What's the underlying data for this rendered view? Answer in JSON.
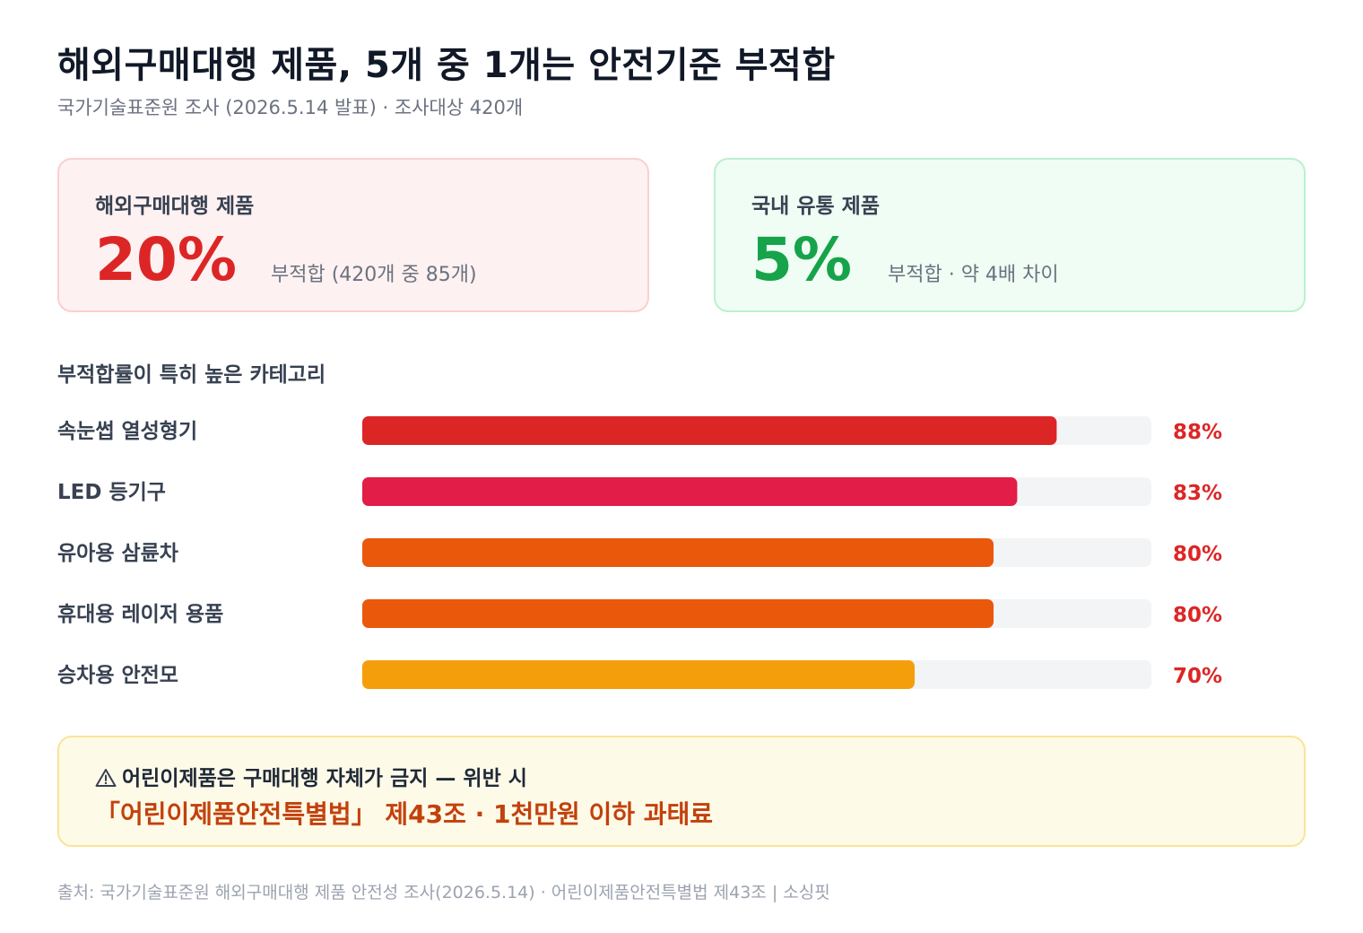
{
  "title": "해외구매대행 제품, 5개 중 1개는 안전기준 부적합",
  "subtitle": "국가기술표준원 조사 (2026.5.14 발표) · 조사대상 420개",
  "cards": [
    {
      "label": "해외구매대행 제품",
      "value": "20%",
      "note": "부적합 (420개 중 85개)",
      "color": "#dc2626"
    },
    {
      "label": "국내 유통 제품",
      "value": "5%",
      "note": "부적합 · 약 4배 차이",
      "color": "#16a34a"
    }
  ],
  "section_title": "부적합률이 특히 높은 카테고리",
  "chart_data": {
    "type": "bar",
    "orientation": "horizontal",
    "categories": [
      "속눈썹 열성형기",
      "LED 등기구",
      "유아용 삼륜차",
      "휴대용 레이저 용품",
      "승차용 안전모"
    ],
    "values": [
      88,
      83,
      80,
      80,
      70
    ],
    "value_labels": [
      "88%",
      "83%",
      "80%",
      "80%",
      "70%"
    ],
    "colors": [
      "#dc2626",
      "#e11d48",
      "#ea580c",
      "#ea580c",
      "#f59e0b"
    ],
    "xlim": [
      0,
      100
    ],
    "track_color": "#f3f4f6",
    "value_label_color": "#dc2626",
    "grid": false
  },
  "callout": {
    "icon": "warning-icon",
    "line1": "어린이제품은 구매대행 자체가 금지 — 위반 시",
    "line2": "「어린이제품안전특별법」 제43조 · 1천만원 이하 과태료"
  },
  "source": "출처: 국가기술표준원 해외구매대행 제품 안전성 조사(2026.5.14) · 어린이제품안전특별법 제43조 | 소싱핏"
}
